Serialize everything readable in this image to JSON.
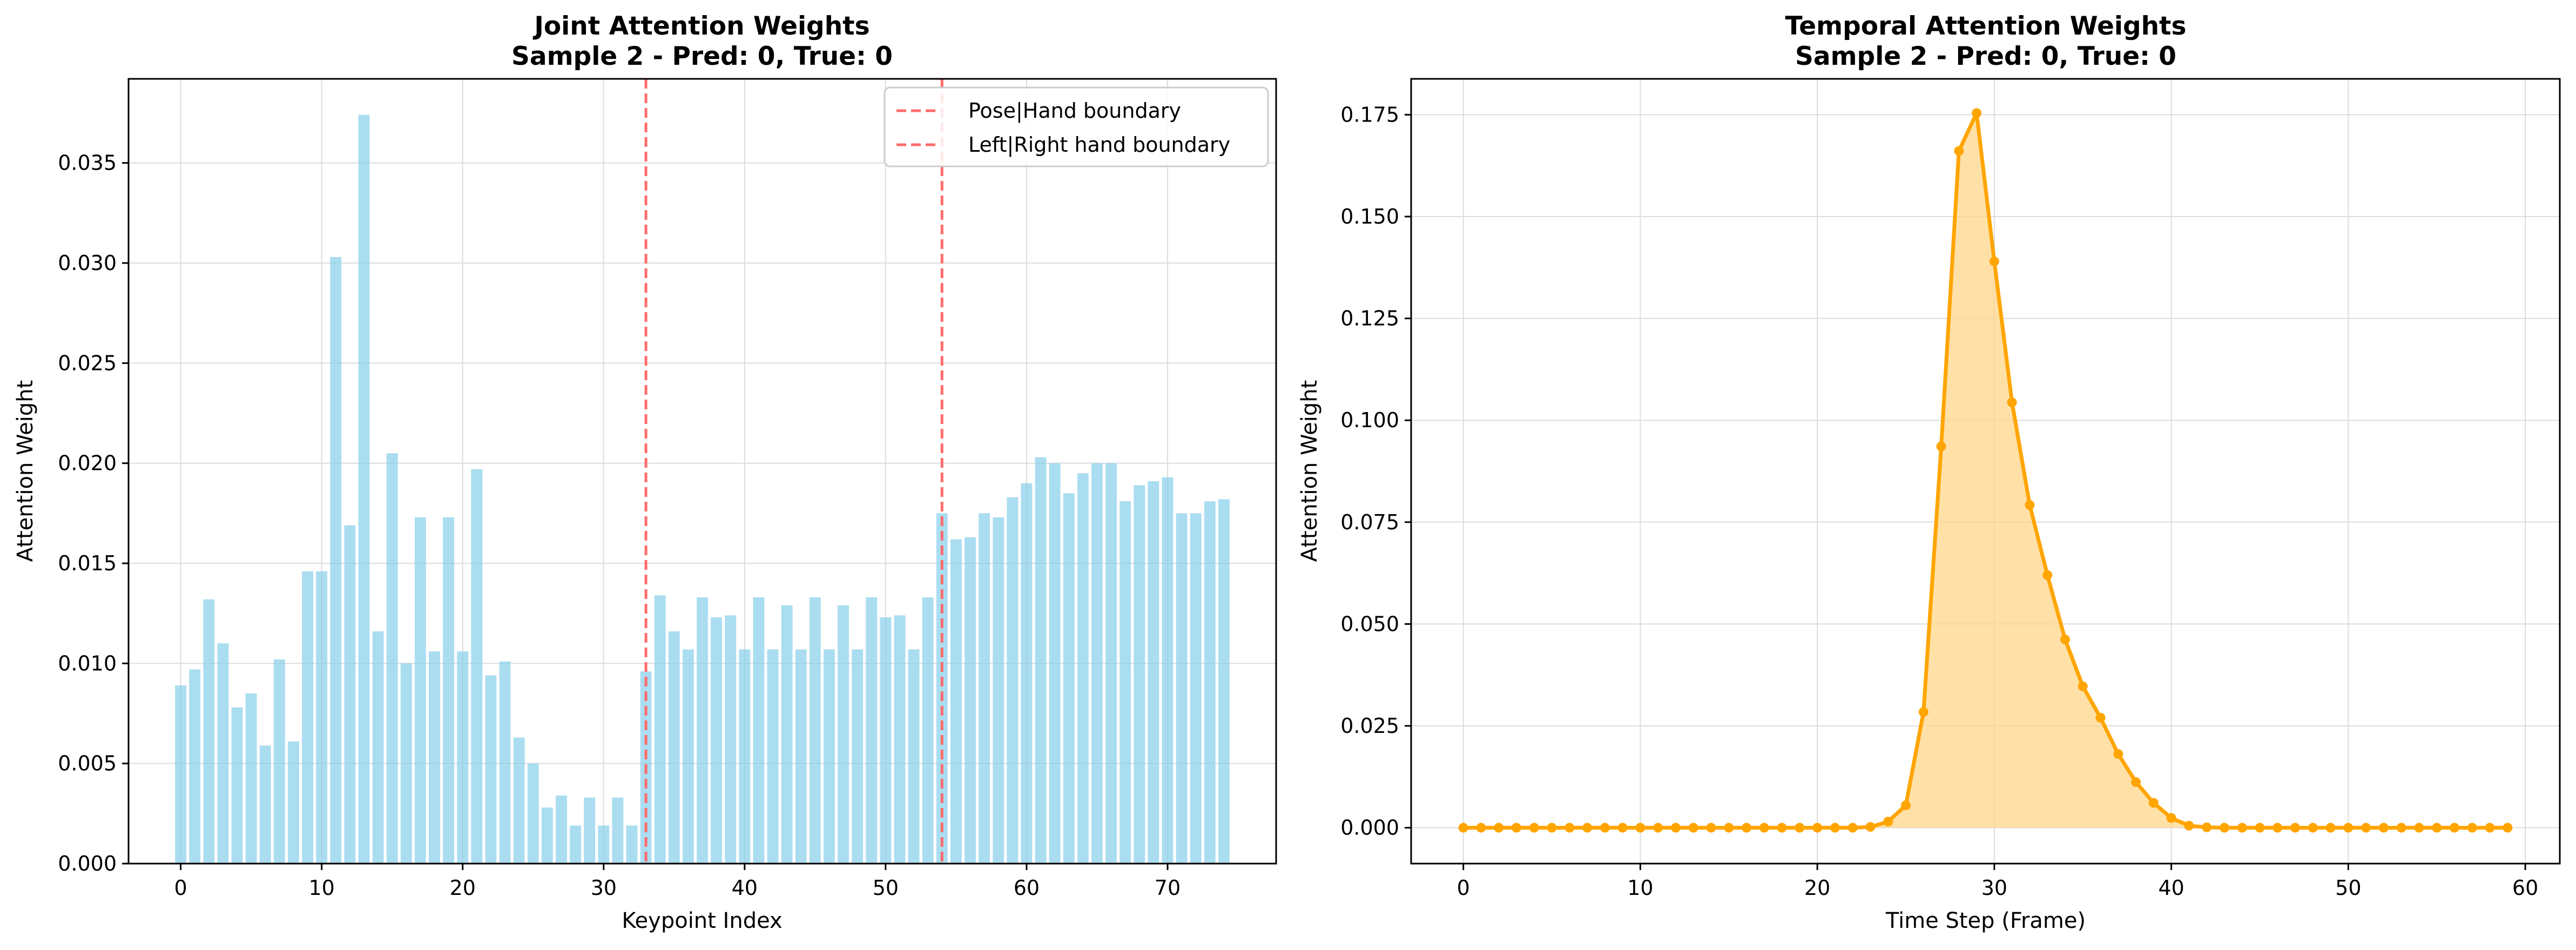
{
  "colors": {
    "bar": "#87ceeb",
    "boundary": "#ff6b6b",
    "line": "#ffa500",
    "fill": "#ffd58a",
    "grid": "#dddddd"
  },
  "chart_data": [
    {
      "type": "bar",
      "title_line1": "Joint Attention Weights",
      "title_line2": "Sample 2 - Pred: 0, True: 0",
      "xlabel": "Keypoint Index",
      "ylabel": "Attention Weight",
      "xlim": [
        -3.7,
        77.7
      ],
      "ylim": [
        0,
        0.0392
      ],
      "xticks": [
        0,
        10,
        20,
        30,
        40,
        50,
        60,
        70
      ],
      "xtick_labels": [
        "0",
        "10",
        "20",
        "30",
        "40",
        "50",
        "60",
        "70"
      ],
      "yticks": [
        0,
        0.005,
        0.01,
        0.015,
        0.02,
        0.025,
        0.03,
        0.035
      ],
      "ytick_labels": [
        "0.000",
        "0.005",
        "0.010",
        "0.015",
        "0.020",
        "0.025",
        "0.030",
        "0.035"
      ],
      "grid": true,
      "legend_position": "top-right",
      "x": [
        0,
        1,
        2,
        3,
        4,
        5,
        6,
        7,
        8,
        9,
        10,
        11,
        12,
        13,
        14,
        15,
        16,
        17,
        18,
        19,
        20,
        21,
        22,
        23,
        24,
        25,
        26,
        27,
        28,
        29,
        30,
        31,
        32,
        33,
        34,
        35,
        36,
        37,
        38,
        39,
        40,
        41,
        42,
        43,
        44,
        45,
        46,
        47,
        48,
        49,
        50,
        51,
        52,
        53,
        54,
        55,
        56,
        57,
        58,
        59,
        60,
        61,
        62,
        63,
        64,
        65,
        66,
        67,
        68,
        69,
        70,
        71,
        72,
        73,
        74
      ],
      "values": [
        0.0089,
        0.0097,
        0.0132,
        0.011,
        0.0078,
        0.0085,
        0.0059,
        0.0102,
        0.0061,
        0.0146,
        0.0146,
        0.0303,
        0.0169,
        0.0374,
        0.0116,
        0.0205,
        0.01,
        0.0173,
        0.0106,
        0.0173,
        0.0106,
        0.0197,
        0.0094,
        0.0101,
        0.0063,
        0.005,
        0.0028,
        0.0034,
        0.0019,
        0.0033,
        0.0019,
        0.0033,
        0.0019,
        0.0096,
        0.0134,
        0.0116,
        0.0107,
        0.0133,
        0.0123,
        0.0124,
        0.0107,
        0.0133,
        0.0107,
        0.0129,
        0.0107,
        0.0133,
        0.0107,
        0.0129,
        0.0107,
        0.0133,
        0.0123,
        0.0124,
        0.0107,
        0.0133,
        0.0175,
        0.0162,
        0.0163,
        0.0175,
        0.0173,
        0.0183,
        0.019,
        0.0203,
        0.02,
        0.0185,
        0.0195,
        0.02,
        0.02,
        0.0181,
        0.0189,
        0.0191,
        0.0193,
        0.0175,
        0.0175,
        0.0181,
        0.0182
      ],
      "vlines": [
        {
          "x": 33,
          "label": "Pose|Hand boundary"
        },
        {
          "x": 54,
          "label": "Left|Right hand boundary"
        }
      ]
    },
    {
      "type": "area",
      "title_line1": "Temporal Attention Weights",
      "title_line2": "Sample 2 - Pred: 0, True: 0",
      "xlabel": "Time Step (Frame)",
      "ylabel": "Attention Weight",
      "xlim": [
        -2.95,
        61.95
      ],
      "ylim": [
        -0.0088,
        0.1838
      ],
      "xticks": [
        0,
        10,
        20,
        30,
        40,
        50,
        60
      ],
      "xtick_labels": [
        "0",
        "10",
        "20",
        "30",
        "40",
        "50",
        "60"
      ],
      "yticks": [
        0,
        0.025,
        0.05,
        0.075,
        0.1,
        0.125,
        0.15,
        0.175
      ],
      "ytick_labels": [
        "0.000",
        "0.025",
        "0.050",
        "0.075",
        "0.100",
        "0.125",
        "0.150",
        "0.175"
      ],
      "grid": true,
      "x": [
        0,
        1,
        2,
        3,
        4,
        5,
        6,
        7,
        8,
        9,
        10,
        11,
        12,
        13,
        14,
        15,
        16,
        17,
        18,
        19,
        20,
        21,
        22,
        23,
        24,
        25,
        26,
        27,
        28,
        29,
        30,
        31,
        32,
        33,
        34,
        35,
        36,
        37,
        38,
        39,
        40,
        41,
        42,
        43,
        44,
        45,
        46,
        47,
        48,
        49,
        50,
        51,
        52,
        53,
        54,
        55,
        56,
        57,
        58,
        59
      ],
      "values": [
        0,
        0,
        0,
        0,
        0,
        0,
        0,
        0,
        0,
        0,
        0,
        0,
        0,
        0,
        0,
        0,
        0,
        0,
        0,
        0,
        0,
        0,
        0,
        0.0002,
        0.0015,
        0.0055,
        0.0284,
        0.0936,
        0.1661,
        0.1754,
        0.139,
        0.1044,
        0.0792,
        0.062,
        0.0462,
        0.0347,
        0.027,
        0.0181,
        0.0112,
        0.0061,
        0.0024,
        0.0005,
        0.0001,
        0,
        0,
        0,
        0,
        0,
        0,
        0,
        0,
        0,
        0,
        0,
        0,
        0,
        0,
        0,
        0,
        0
      ]
    }
  ]
}
